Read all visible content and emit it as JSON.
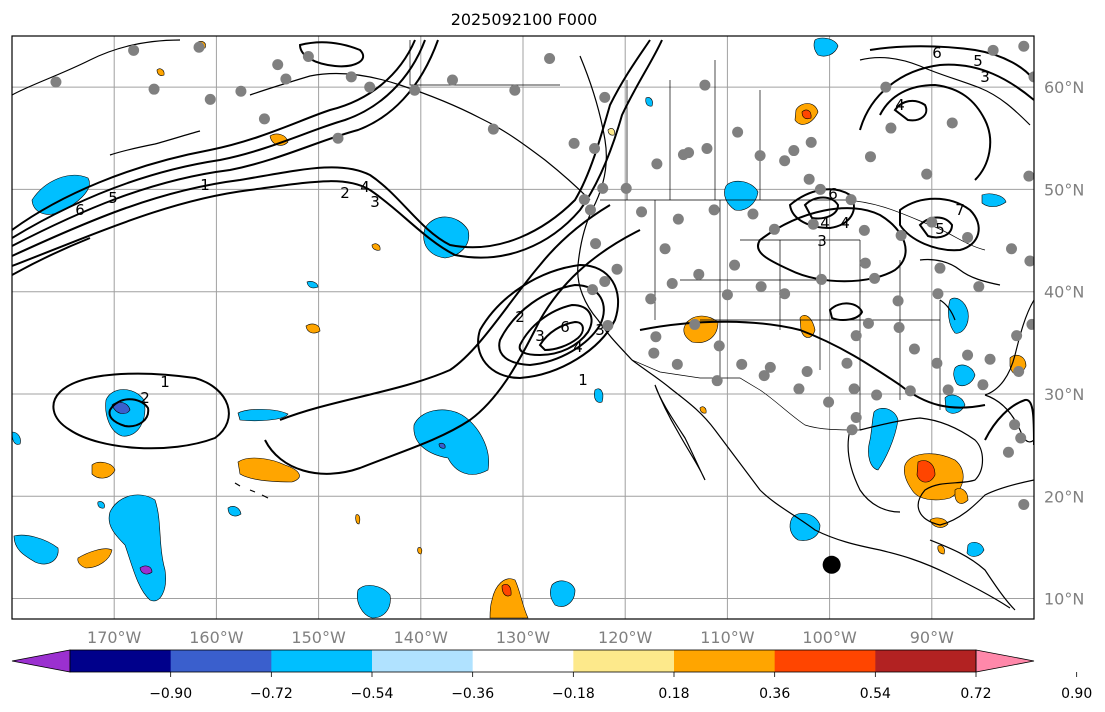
{
  "title": "2025092100 F000",
  "map": {
    "lon_range": [
      -180,
      -80
    ],
    "lat_range": [
      8,
      65
    ],
    "grid": true,
    "lon_labels": [
      "170°W",
      "160°W",
      "150°W",
      "140°W",
      "130°W",
      "120°W",
      "110°W",
      "100°W",
      "90°W"
    ],
    "lat_labels": [
      "60°N",
      "50°N",
      "40°N",
      "30°N",
      "20°N",
      "10°N"
    ],
    "contour_labels": [
      "1",
      "2",
      "3",
      "4",
      "5",
      "6",
      "1",
      "2",
      "3",
      "4",
      "2",
      "3",
      "4",
      "6",
      "1",
      "3",
      "4",
      "6",
      "5",
      "3",
      "4",
      "6",
      "7",
      "5"
    ],
    "colors": {
      "grid": "#a0a0a0",
      "tick_text": "#808080",
      "contour": "#000000",
      "station_dot": "#808080",
      "marker": "#000000"
    }
  },
  "colorbar": {
    "ticks": [
      "−0.90",
      "−0.72",
      "−0.54",
      "−0.36",
      "−0.18",
      "0.18",
      "0.36",
      "0.54",
      "0.72",
      "0.90"
    ],
    "colors": [
      "#9b30d0",
      "#00008b",
      "#3a5fcd",
      "#00bfff",
      "#b0e2ff",
      "#ffffff",
      "#fde98b",
      "#ffa500",
      "#ff4500",
      "#b22222",
      "#ff88aa"
    ]
  },
  "chart_data": {
    "type": "heatmap",
    "title": "2025092100 F000",
    "xlabel": "",
    "ylabel": "",
    "xlim": [
      -180,
      -80
    ],
    "ylim": [
      8,
      65
    ],
    "x_ticks": [
      "170°W",
      "160°W",
      "150°W",
      "140°W",
      "130°W",
      "120°W",
      "110°W",
      "100°W",
      "90°W"
    ],
    "y_ticks": [
      "60°N",
      "50°N",
      "40°N",
      "30°N",
      "20°N",
      "10°N"
    ],
    "colorbar_levels": [
      -0.9,
      -0.72,
      -0.54,
      -0.36,
      -0.18,
      0.18,
      0.36,
      0.54,
      0.72,
      0.9
    ],
    "contour_levels": [
      1,
      2,
      3,
      4,
      5,
      6,
      7
    ],
    "highlight_marker": {
      "lon": -99.8,
      "lat": 13.3
    },
    "stations": [
      {
        "lon": -175.7,
        "lat": 60.5
      },
      {
        "lon": -168.1,
        "lat": 63.6
      },
      {
        "lon": -166.1,
        "lat": 59.8
      },
      {
        "lon": -161.7,
        "lat": 63.9
      },
      {
        "lon": -160.6,
        "lat": 58.8
      },
      {
        "lon": -157.6,
        "lat": 59.6
      },
      {
        "lon": -155.3,
        "lat": 56.9
      },
      {
        "lon": -154.0,
        "lat": 62.2
      },
      {
        "lon": -153.2,
        "lat": 60.8
      },
      {
        "lon": -151.0,
        "lat": 63.0
      },
      {
        "lon": -148.1,
        "lat": 55.0
      },
      {
        "lon": -146.8,
        "lat": 61.0
      },
      {
        "lon": -145.0,
        "lat": 60.0
      },
      {
        "lon": -140.6,
        "lat": 59.7
      },
      {
        "lon": -136.9,
        "lat": 60.7
      },
      {
        "lon": -132.9,
        "lat": 55.9
      },
      {
        "lon": -130.8,
        "lat": 59.7
      },
      {
        "lon": -127.4,
        "lat": 62.8
      },
      {
        "lon": -122.0,
        "lat": 59.0
      },
      {
        "lon": -123.0,
        "lat": 54.0
      },
      {
        "lon": -122.2,
        "lat": 50.1
      },
      {
        "lon": -116.9,
        "lat": 52.5
      },
      {
        "lon": -114.3,
        "lat": 53.4
      },
      {
        "lon": -113.8,
        "lat": 53.6
      },
      {
        "lon": -112.0,
        "lat": 54.0
      },
      {
        "lon": -112.2,
        "lat": 60.2
      },
      {
        "lon": -109.0,
        "lat": 55.6
      },
      {
        "lon": -106.8,
        "lat": 53.3
      },
      {
        "lon": -104.4,
        "lat": 52.8
      },
      {
        "lon": -103.5,
        "lat": 53.8
      },
      {
        "lon": -102.0,
        "lat": 51.0
      },
      {
        "lon": -101.8,
        "lat": 54.6
      },
      {
        "lon": -100.9,
        "lat": 50.0
      },
      {
        "lon": -96.0,
        "lat": 53.2
      },
      {
        "lon": -94.0,
        "lat": 56.0
      },
      {
        "lon": -94.5,
        "lat": 60.0
      },
      {
        "lon": -90.5,
        "lat": 51.5
      },
      {
        "lon": -88.0,
        "lat": 56.5
      },
      {
        "lon": -84.0,
        "lat": 63.6
      },
      {
        "lon": -80.5,
        "lat": 51.3
      },
      {
        "lon": -81.0,
        "lat": 64.0
      },
      {
        "lon": -119.9,
        "lat": 50.1
      },
      {
        "lon": -125.0,
        "lat": 54.5
      },
      {
        "lon": -124.0,
        "lat": 49.0
      },
      {
        "lon": -123.4,
        "lat": 48.0
      },
      {
        "lon": -122.9,
        "lat": 44.7
      },
      {
        "lon": -120.8,
        "lat": 42.2
      },
      {
        "lon": -118.4,
        "lat": 47.8
      },
      {
        "lon": -116.1,
        "lat": 44.2
      },
      {
        "lon": -114.8,
        "lat": 47.1
      },
      {
        "lon": -111.3,
        "lat": 48.0
      },
      {
        "lon": -107.5,
        "lat": 47.6
      },
      {
        "lon": -105.4,
        "lat": 46.1
      },
      {
        "lon": -101.6,
        "lat": 46.6
      },
      {
        "lon": -97.9,
        "lat": 49.0
      },
      {
        "lon": -96.6,
        "lat": 46.0
      },
      {
        "lon": -93.0,
        "lat": 45.5
      },
      {
        "lon": -90.0,
        "lat": 46.8
      },
      {
        "lon": -86.5,
        "lat": 45.3
      },
      {
        "lon": -82.2,
        "lat": 44.2
      },
      {
        "lon": -89.2,
        "lat": 42.3
      },
      {
        "lon": -85.4,
        "lat": 40.5
      },
      {
        "lon": -89.4,
        "lat": 39.8
      },
      {
        "lon": -93.3,
        "lat": 39.1
      },
      {
        "lon": -95.6,
        "lat": 41.3
      },
      {
        "lon": -96.5,
        "lat": 42.8
      },
      {
        "lon": -100.8,
        "lat": 41.2
      },
      {
        "lon": -104.4,
        "lat": 39.8
      },
      {
        "lon": -106.7,
        "lat": 40.5
      },
      {
        "lon": -109.3,
        "lat": 42.6
      },
      {
        "lon": -110.0,
        "lat": 39.7
      },
      {
        "lon": -112.8,
        "lat": 41.7
      },
      {
        "lon": -115.4,
        "lat": 40.8
      },
      {
        "lon": -117.5,
        "lat": 39.3
      },
      {
        "lon": -122.0,
        "lat": 41.0
      },
      {
        "lon": -123.2,
        "lat": 40.2
      },
      {
        "lon": -117.0,
        "lat": 35.6
      },
      {
        "lon": -113.2,
        "lat": 36.8
      },
      {
        "lon": -110.8,
        "lat": 34.7
      },
      {
        "lon": -108.6,
        "lat": 32.9
      },
      {
        "lon": -105.8,
        "lat": 32.6
      },
      {
        "lon": -102.2,
        "lat": 32.2
      },
      {
        "lon": -98.3,
        "lat": 33.0
      },
      {
        "lon": -97.4,
        "lat": 35.7
      },
      {
        "lon": -96.2,
        "lat": 36.9
      },
      {
        "lon": -93.2,
        "lat": 36.5
      },
      {
        "lon": -91.7,
        "lat": 34.4
      },
      {
        "lon": -89.5,
        "lat": 33.0
      },
      {
        "lon": -86.5,
        "lat": 33.8
      },
      {
        "lon": -84.3,
        "lat": 33.4
      },
      {
        "lon": -81.7,
        "lat": 35.7
      },
      {
        "lon": -80.2,
        "lat": 36.8
      },
      {
        "lon": -81.5,
        "lat": 32.2
      },
      {
        "lon": -85.0,
        "lat": 30.9
      },
      {
        "lon": -88.4,
        "lat": 30.4
      },
      {
        "lon": -92.1,
        "lat": 30.3
      },
      {
        "lon": -95.4,
        "lat": 29.9
      },
      {
        "lon": -97.6,
        "lat": 30.5
      },
      {
        "lon": -100.1,
        "lat": 29.2
      },
      {
        "lon": -103.0,
        "lat": 30.5
      },
      {
        "lon": -106.4,
        "lat": 31.8
      },
      {
        "lon": -111.0,
        "lat": 31.3
      },
      {
        "lon": -114.9,
        "lat": 32.9
      },
      {
        "lon": -117.2,
        "lat": 34.0
      },
      {
        "lon": -121.7,
        "lat": 36.7
      },
      {
        "lon": -97.8,
        "lat": 26.5
      },
      {
        "lon": -97.4,
        "lat": 27.7
      },
      {
        "lon": -81.9,
        "lat": 27.0
      },
      {
        "lon": -82.5,
        "lat": 24.3
      },
      {
        "lon": -81.3,
        "lat": 25.7
      },
      {
        "lon": -81.0,
        "lat": 19.2
      },
      {
        "lon": -80.0,
        "lat": 61.0
      },
      {
        "lon": -80.4,
        "lat": 43.0
      }
    ]
  }
}
